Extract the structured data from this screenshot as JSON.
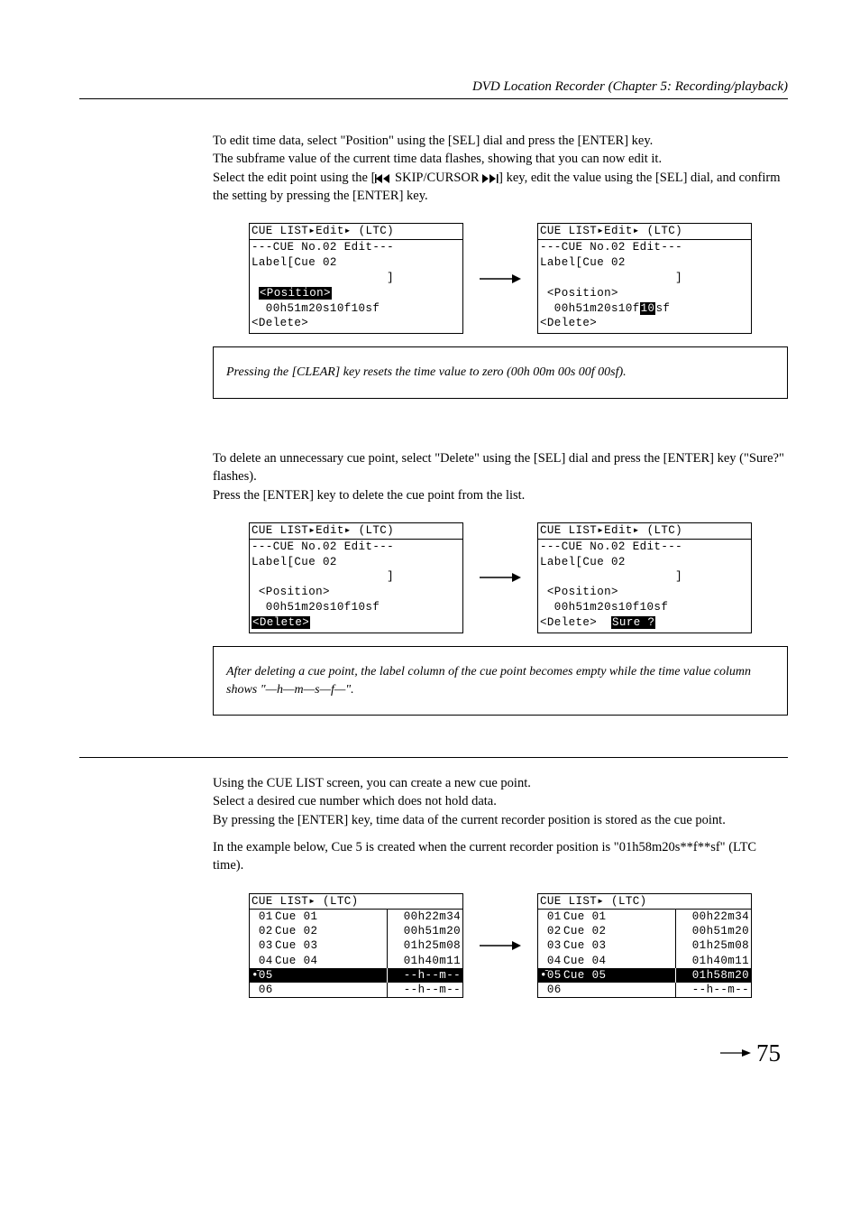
{
  "header": "DVD Location Recorder (Chapter 5: Recording/playback)",
  "para1a": "To edit time data, select \"Position\" using the [SEL] dial and press the [ENTER] key.",
  "para1b": "The subframe value of the current time data flashes, showing that you can now edit it.",
  "para1c_pre": "Select the edit point using the [",
  "para1c_mid": " SKIP/CURSOR ",
  "para1c_post": "] key, edit the value using the [SEL] dial, and confirm the setting by pressing the [ENTER] key.",
  "lcdA": {
    "title": "CUE LIST▸Edit▸ (LTC)",
    "l1": "---CUE No.02 Edit---",
    "l2": "Label[Cue 02",
    "l3": "                   ]",
    "l4_inv": "<Position>",
    "l5": "  00h51m20s10f10sf",
    "l6": "<Delete>"
  },
  "lcdB": {
    "title": "CUE LIST▸Edit▸ (LTC)",
    "l1": "---CUE No.02 Edit---",
    "l2": "Label[Cue 02",
    "l3": "                   ]",
    "l4": " <Position>",
    "l5a": "  00h51m20s10f",
    "l5_inv": "10",
    "l5b": "sf",
    "l6": "<Delete>"
  },
  "note1": "Pressing the [CLEAR] key resets the time value to zero (00h 00m 00s 00f 00sf).",
  "para2a": "To delete an unnecessary cue point, select \"Delete\" using the [SEL] dial and press the [ENTER] key (\"Sure?\" flashes).",
  "para2b": "Press the [ENTER] key to delete the cue point from the list.",
  "lcdC": {
    "title": "CUE LIST▸Edit▸ (LTC)",
    "l1": "---CUE No.02 Edit---",
    "l2": "Label[Cue 02",
    "l3": "                   ]",
    "l4": " <Position>",
    "l5": "  00h51m20s10f10sf",
    "l6_inv": "<Delete>"
  },
  "lcdD": {
    "title": "CUE LIST▸Edit▸ (LTC)",
    "l1": "---CUE No.02 Edit---",
    "l2": "Label[Cue 02",
    "l3": "                   ]",
    "l4": " <Position>",
    "l5": "  00h51m20s10f10sf",
    "l6a": "<Delete>  ",
    "l6_inv": "Sure ?"
  },
  "note2": "After deleting a cue point, the label column of the cue point becomes empty while the time value column shows \"—h—m—s—f—\".",
  "para3a": "Using the CUE LIST screen, you can create a new cue point.",
  "para3b": "Select a desired cue number which does not hold data.",
  "para3c": "By pressing the [ENTER] key, time data of the current recorder position is stored as the cue point.",
  "para3d": "In the example below, Cue 5 is created when the current recorder position is \"01h58m20s**f**sf\" (LTC time).",
  "listL": {
    "title": "CUE LIST▸ (LTC)",
    "rows": [
      {
        "n": " 01",
        "lbl": "Cue 01",
        "t": "00h22m34"
      },
      {
        "n": " 02",
        "lbl": "Cue 02",
        "t": "00h51m20"
      },
      {
        "n": " 03",
        "lbl": "Cue 03",
        "t": "01h25m08"
      },
      {
        "n": " 04",
        "lbl": "Cue 04",
        "t": "01h40m11"
      }
    ],
    "sel": {
      "n": "•̄05",
      "lbl": "",
      "t": "--h--m--"
    },
    "after": {
      "n": " 06",
      "lbl": "",
      "t": "--h--m--"
    }
  },
  "listR": {
    "title": "CUE LIST▸ (LTC)",
    "rows": [
      {
        "n": " 01",
        "lbl": "Cue 01",
        "t": "00h22m34"
      },
      {
        "n": " 02",
        "lbl": "Cue 02",
        "t": "00h51m20"
      },
      {
        "n": " 03",
        "lbl": "Cue 03",
        "t": "01h25m08"
      },
      {
        "n": " 04",
        "lbl": "Cue 04",
        "t": "01h40m11"
      }
    ],
    "sel": {
      "n": "•̄05",
      "lbl": "Cue 05",
      "t": "01h58m20"
    },
    "after": {
      "n": " 06",
      "lbl": "",
      "t": "--h--m--"
    }
  },
  "page": "75"
}
